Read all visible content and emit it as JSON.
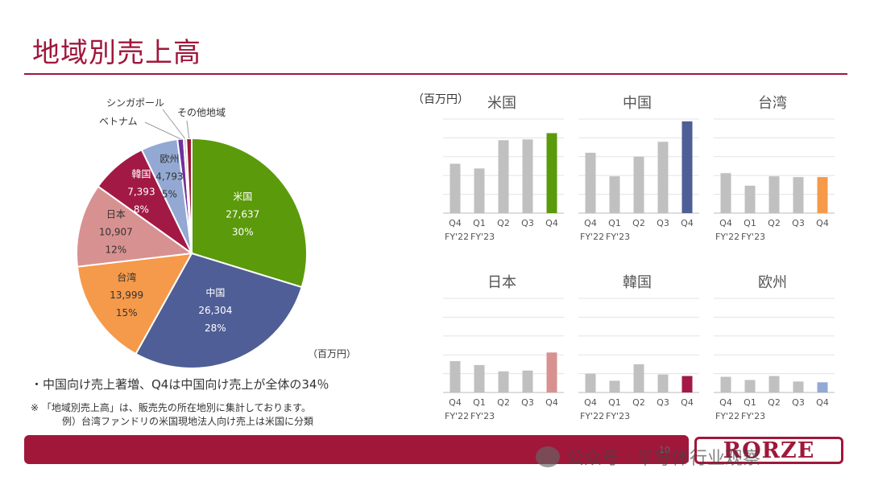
{
  "page": {
    "title": "地域別売上高",
    "unit_pie": "（百万円）",
    "unit_bars": "（百万円）",
    "bullet_main": "・中国向け売上著増、Q4は中国向け売上が全体の34％",
    "note1": "※ 「地域別売上高」は、販売先の所在地別に集計しております。",
    "note2": "例）台湾ファンドリの米国現地法人向け売上は米国に分類",
    "page_number": "10",
    "logo": "RORZE",
    "watermark": "公众号 · 半导体行业观察",
    "watermark_icon": "wechat-icon"
  },
  "chart_data": [
    {
      "type": "pie",
      "slices": [
        {
          "label": "米国",
          "value": "27,637",
          "pct": "30%",
          "num": 27637,
          "color": "#5b9a0b",
          "label_color": "#ffffff"
        },
        {
          "label": "中国",
          "value": "26,304",
          "pct": "28%",
          "num": 26304,
          "color": "#4f5e96",
          "label_color": "#ffffff"
        },
        {
          "label": "台湾",
          "value": "13,999",
          "pct": "15%",
          "num": 13999,
          "color": "#f5994a",
          "label_color": "#333333"
        },
        {
          "label": "日本",
          "value": "10,907",
          "pct": "12%",
          "num": 10907,
          "color": "#d89191",
          "label_color": "#333333"
        },
        {
          "label": "韓国",
          "value": "7,393",
          "pct": "8%",
          "num": 7393,
          "color": "#a31945",
          "label_color": "#ffffff"
        },
        {
          "label": "欧州",
          "value": "4,793",
          "pct": "5%",
          "num": 4793,
          "color": "#93a9d4",
          "label_color": "#333333"
        },
        {
          "label": "ベトナム",
          "value": "",
          "pct": "",
          "num": 800,
          "color": "#7030a0",
          "label_color": "#333333"
        },
        {
          "label": "シンガポール",
          "value": "",
          "pct": "",
          "num": 350,
          "color": "#c0c0c0",
          "label_color": "#333333"
        },
        {
          "label": "その他地域",
          "value": "",
          "pct": "",
          "num": 700,
          "color": "#a0173a",
          "label_color": "#333333"
        }
      ]
    },
    {
      "type": "bar",
      "title": "米国",
      "categories": [
        "Q4",
        "Q1",
        "Q2",
        "Q3",
        "Q4"
      ],
      "year_labels": [
        "FY'22",
        "FY'23"
      ],
      "values": [
        6300,
        5700,
        9300,
        9400,
        10200
      ],
      "colors": [
        "#c0c0c0",
        "#c0c0c0",
        "#c0c0c0",
        "#c0c0c0",
        "#5b9a0b"
      ],
      "ylim": [
        0,
        12000
      ]
    },
    {
      "type": "bar",
      "title": "中国",
      "categories": [
        "Q4",
        "Q1",
        "Q2",
        "Q3",
        "Q4"
      ],
      "year_labels": [
        "FY'22",
        "FY'23"
      ],
      "values": [
        7700,
        4700,
        7200,
        9100,
        11700
      ],
      "colors": [
        "#c0c0c0",
        "#c0c0c0",
        "#c0c0c0",
        "#c0c0c0",
        "#4f5e96"
      ],
      "ylim": [
        0,
        12000
      ]
    },
    {
      "type": "bar",
      "title": "台湾",
      "categories": [
        "Q4",
        "Q1",
        "Q2",
        "Q3",
        "Q4"
      ],
      "year_labels": [
        "FY'22",
        "FY'23"
      ],
      "values": [
        5100,
        3500,
        4700,
        4600,
        4600
      ],
      "colors": [
        "#c0c0c0",
        "#c0c0c0",
        "#c0c0c0",
        "#c0c0c0",
        "#f5994a"
      ],
      "ylim": [
        0,
        12000
      ]
    },
    {
      "type": "bar",
      "title": "日本",
      "categories": [
        "Q4",
        "Q1",
        "Q2",
        "Q3",
        "Q4"
      ],
      "year_labels": [
        "FY'22",
        "FY'23"
      ],
      "values": [
        4000,
        3500,
        2700,
        2800,
        5100
      ],
      "colors": [
        "#c0c0c0",
        "#c0c0c0",
        "#c0c0c0",
        "#c0c0c0",
        "#d89191"
      ],
      "ylim": [
        0,
        12000
      ]
    },
    {
      "type": "bar",
      "title": "韓国",
      "categories": [
        "Q4",
        "Q1",
        "Q2",
        "Q3",
        "Q4"
      ],
      "year_labels": [
        "FY'22",
        "FY'23"
      ],
      "values": [
        2400,
        1500,
        3600,
        2300,
        2100
      ],
      "colors": [
        "#c0c0c0",
        "#c0c0c0",
        "#c0c0c0",
        "#c0c0c0",
        "#a31945"
      ],
      "ylim": [
        0,
        12000
      ]
    },
    {
      "type": "bar",
      "title": "欧州",
      "categories": [
        "Q4",
        "Q1",
        "Q2",
        "Q3",
        "Q4"
      ],
      "year_labels": [
        "FY'22",
        "FY'23"
      ],
      "values": [
        2000,
        1600,
        2100,
        1400,
        1300
      ],
      "colors": [
        "#c0c0c0",
        "#c0c0c0",
        "#c0c0c0",
        "#c0c0c0",
        "#93a9d4"
      ],
      "ylim": [
        0,
        12000
      ]
    }
  ]
}
